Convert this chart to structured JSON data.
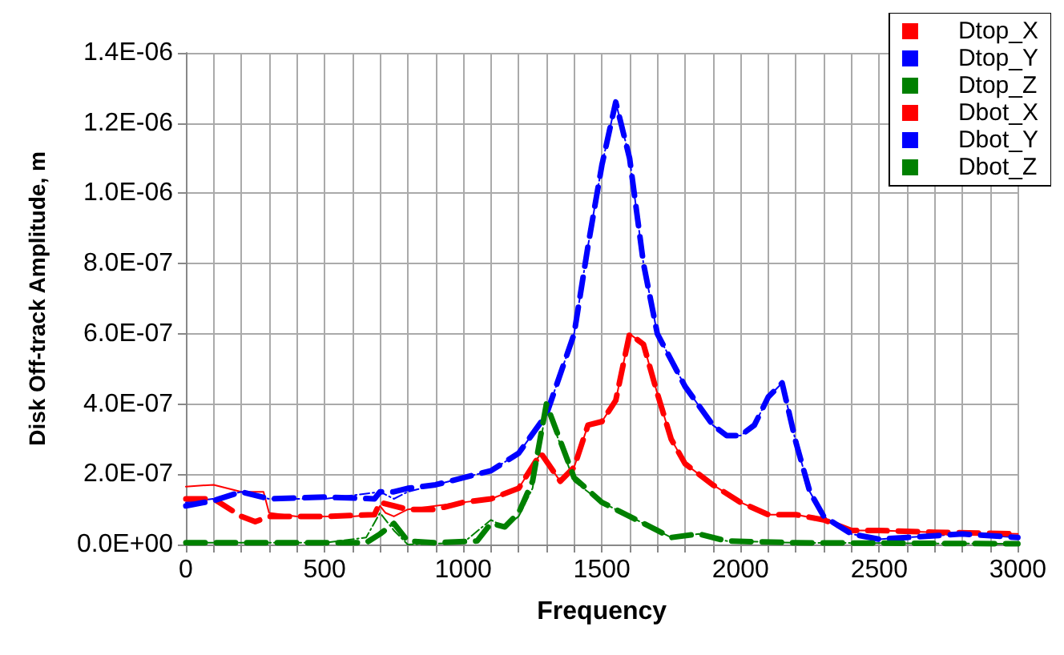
{
  "chart_data": {
    "type": "line",
    "xlabel": "Frequency",
    "ylabel": "Disk Off-track Amplitude, m",
    "xlim": [
      0,
      3000
    ],
    "xticks": [
      0,
      {
        "value": 100,
        "label": null
      },
      {
        "value": 200,
        "label": null
      },
      {
        "value": 300,
        "label": null
      },
      {
        "value": 400,
        "label": null
      },
      500,
      {
        "value": 600,
        "label": null
      },
      {
        "value": 700,
        "label": null
      },
      {
        "value": 800,
        "label": null
      },
      {
        "value": 900,
        "label": null
      },
      1000,
      {
        "value": 1100,
        "label": null
      },
      {
        "value": 1200,
        "label": null
      },
      {
        "value": 1300,
        "label": null
      },
      {
        "value": 1400,
        "label": null
      },
      1500,
      {
        "value": 1600,
        "label": null
      },
      {
        "value": 1700,
        "label": null
      },
      {
        "value": 1800,
        "label": null
      },
      {
        "value": 1900,
        "label": null
      },
      2000,
      {
        "value": 2100,
        "label": null
      },
      {
        "value": 2200,
        "label": null
      },
      {
        "value": 2300,
        "label": null
      },
      {
        "value": 2400,
        "label": null
      },
      2500,
      {
        "value": 2600,
        "label": null
      },
      {
        "value": 2700,
        "label": null
      },
      {
        "value": 2800,
        "label": null
      },
      {
        "value": 2900,
        "label": null
      },
      3000
    ],
    "ylim": [
      0,
      1.4e-06
    ],
    "yticks": [
      {
        "value": 0,
        "label": "0.0E+00"
      },
      {
        "value": 2e-07,
        "label": "2.0E-07"
      },
      {
        "value": 4e-07,
        "label": "4.0E-07"
      },
      {
        "value": 6e-07,
        "label": "6.0E-07"
      },
      {
        "value": 8e-07,
        "label": "8.0E-07"
      },
      {
        "value": 1e-06,
        "label": "1.0E-06"
      },
      {
        "value": 1.2e-06,
        "label": "1.2E-06"
      },
      {
        "value": 1.4e-06,
        "label": "1.4E-06"
      }
    ],
    "grid": true,
    "legend": "top right",
    "marker": "none",
    "series": [
      {
        "name": "Dtop_X",
        "color": "#ff0000",
        "line_style": "solid",
        "x": [
          0,
          100,
          200,
          280,
          300,
          400,
          500,
          600,
          680,
          700,
          720,
          750,
          800,
          900,
          1000,
          1100,
          1200,
          1280,
          1350,
          1400,
          1450,
          1500,
          1550,
          1600,
          1650,
          1700,
          1750,
          1800,
          1900,
          2000,
          2100,
          2200,
          2300,
          2400,
          2500,
          2700,
          3000
        ],
        "values": [
          1.65e-07,
          1.7e-07,
          1.5e-07,
          1.5e-07,
          9e-08,
          8e-08,
          8e-08,
          8e-08,
          8.5e-08,
          1.1e-07,
          9e-08,
          8e-08,
          1e-07,
          1.1e-07,
          1.2e-07,
          1.3e-07,
          1.6e-07,
          2.6e-07,
          1.8e-07,
          2.2e-07,
          3.4e-07,
          3.5e-07,
          4.1e-07,
          6e-07,
          5.7e-07,
          4.3e-07,
          3e-07,
          2.3e-07,
          1.7e-07,
          1.2e-07,
          8.5e-08,
          8.5e-08,
          7e-08,
          4e-08,
          4e-08,
          3.5e-08,
          3e-08
        ]
      },
      {
        "name": "Dtop_Y",
        "color": "#0000ff",
        "line_style": "dotted",
        "x": [
          0,
          100,
          200,
          300,
          500,
          700,
          750,
          800,
          900,
          1000,
          1100,
          1200,
          1300,
          1400,
          1450,
          1500,
          1550,
          1600,
          1650,
          1700,
          1800,
          1900,
          1950,
          2000,
          2050,
          2100,
          2150,
          2200,
          2250,
          2300,
          2400,
          2500,
          2600,
          2800,
          3000
        ],
        "values": [
          1.2e-07,
          1.3e-07,
          1.5e-07,
          1.3e-07,
          1.3e-07,
          1.5e-07,
          1.3e-07,
          1.5e-07,
          1.7e-07,
          1.9e-07,
          2.1e-07,
          2.6e-07,
          3.7e-07,
          6e-07,
          8.5e-07,
          1.08e-06,
          1.26e-06,
          1.1e-06,
          8e-07,
          6e-07,
          4.5e-07,
          3.4e-07,
          3.1e-07,
          3.1e-07,
          3.4e-07,
          4.2e-07,
          4.6e-07,
          2.9e-07,
          1.5e-07,
          8e-08,
          3e-08,
          1.5e-08,
          2e-08,
          3e-08,
          2e-08
        ]
      },
      {
        "name": "Dtop_Z",
        "color": "#008000",
        "line_style": "dotted",
        "x": [
          0,
          500,
          650,
          700,
          750,
          800,
          1000,
          1100,
          1150,
          1200,
          1250,
          1300,
          1400,
          1500,
          1600,
          1700,
          1750,
          1850,
          1950,
          2200,
          3000
        ],
        "values": [
          5e-09,
          5e-09,
          2e-08,
          9e-08,
          4e-08,
          0.0,
          5e-09,
          7e-08,
          5e-08,
          8e-08,
          1.6e-07,
          3.9e-07,
          1.8e-07,
          1.2e-07,
          8e-08,
          4e-08,
          2e-08,
          3e-08,
          1e-08,
          5e-09,
          2e-09
        ]
      },
      {
        "name": "Dbot_X",
        "color": "#ff0000",
        "line_style": "dashed",
        "x": [
          0,
          100,
          200,
          250,
          300,
          500,
          680,
          700,
          750,
          800,
          900,
          1000,
          1100,
          1200,
          1280,
          1350,
          1400,
          1450,
          1500,
          1550,
          1600,
          1650,
          1700,
          1750,
          1800,
          1900,
          2000,
          2100,
          2200,
          2300,
          2400,
          2500,
          2700,
          3000
        ],
        "values": [
          1.3e-07,
          1.3e-07,
          8e-08,
          6.5e-08,
          8e-08,
          8e-08,
          8.5e-08,
          1.2e-07,
          1.1e-07,
          1e-07,
          1e-07,
          1.2e-07,
          1.3e-07,
          1.6e-07,
          2.6e-07,
          1.8e-07,
          2.2e-07,
          3.4e-07,
          3.5e-07,
          4.1e-07,
          6e-07,
          5.7e-07,
          4.3e-07,
          3e-07,
          2.3e-07,
          1.7e-07,
          1.2e-07,
          8.5e-08,
          8.5e-08,
          7e-08,
          4e-08,
          4e-08,
          3.5e-08,
          3e-08
        ]
      },
      {
        "name": "Dbot_Y",
        "color": "#0000ff",
        "line_style": "dashed",
        "x": [
          0,
          100,
          200,
          300,
          500,
          680,
          700,
          750,
          800,
          900,
          1000,
          1100,
          1200,
          1300,
          1400,
          1450,
          1500,
          1550,
          1600,
          1650,
          1700,
          1800,
          1900,
          1950,
          2000,
          2050,
          2100,
          2150,
          2200,
          2250,
          2300,
          2400,
          2500,
          2600,
          2800,
          3000
        ],
        "values": [
          1.1e-07,
          1.25e-07,
          1.5e-07,
          1.3e-07,
          1.35e-07,
          1.3e-07,
          1.5e-07,
          1.5e-07,
          1.6e-07,
          1.7e-07,
          1.9e-07,
          2.1e-07,
          2.6e-07,
          3.7e-07,
          6e-07,
          8.5e-07,
          1.08e-06,
          1.26e-06,
          1.1e-06,
          8e-07,
          6e-07,
          4.5e-07,
          3.4e-07,
          3.1e-07,
          3.1e-07,
          3.4e-07,
          4.2e-07,
          4.6e-07,
          2.9e-07,
          1.5e-07,
          8e-08,
          3e-08,
          1.5e-08,
          2e-08,
          3e-08,
          2e-08
        ]
      },
      {
        "name": "Dbot_Z",
        "color": "#008000",
        "line_style": "dashed",
        "x": [
          0,
          650,
          700,
          750,
          800,
          900,
          1050,
          1100,
          1150,
          1200,
          1250,
          1300,
          1400,
          1500,
          1600,
          1700,
          1750,
          1850,
          1950,
          2200,
          3000
        ],
        "values": [
          5e-09,
          5e-09,
          3e-08,
          6e-08,
          1e-08,
          5e-09,
          1e-08,
          6e-08,
          5e-08,
          9e-08,
          1.8e-07,
          4e-07,
          1.9e-07,
          1.2e-07,
          8e-08,
          4e-08,
          2e-08,
          3e-08,
          1e-08,
          5e-09,
          2e-09
        ]
      }
    ]
  }
}
